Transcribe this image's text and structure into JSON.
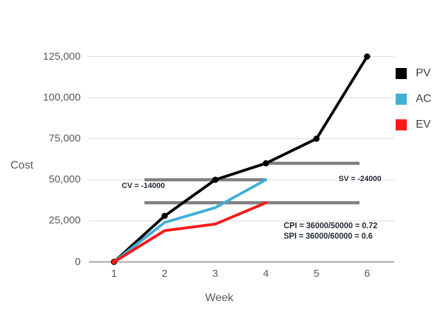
{
  "chart_data": {
    "type": "line",
    "title": "",
    "xlabel": "Week",
    "ylabel": "Cost",
    "x_ticks": [
      "1",
      "2",
      "3",
      "4",
      "5",
      "6"
    ],
    "y_ticks": [
      "0",
      "25,000",
      "50,000",
      "75,000",
      "100,000",
      "125,000"
    ],
    "y_tick_values": [
      0,
      25000,
      50000,
      75000,
      100000,
      125000
    ],
    "xlim": [
      1,
      6
    ],
    "ylim": [
      0,
      125000
    ],
    "grid": "horizontal",
    "series": [
      {
        "name": "PV",
        "color": "#000000",
        "markers": "all",
        "x": [
          1,
          2,
          3,
          4,
          5,
          6
        ],
        "values": [
          0,
          28000,
          50000,
          60000,
          75000,
          125000
        ]
      },
      {
        "name": "AC",
        "color": "#41b0d4",
        "markers": "none",
        "x": [
          1,
          2,
          3,
          4
        ],
        "values": [
          0,
          24000,
          33000,
          50000
        ]
      },
      {
        "name": "EV",
        "color": "#fb1a1a",
        "markers": "first",
        "x": [
          1,
          2,
          3,
          4
        ],
        "values": [
          0,
          19000,
          23000,
          36000
        ]
      }
    ],
    "reference_lines": [
      {
        "label": "PV at week 4",
        "value": 60000,
        "from_week": 4.0,
        "to_week": 5.85,
        "color": "#7f7f7f"
      },
      {
        "label": "AC at week 4",
        "value": 50000,
        "from_week": 1.6,
        "to_week": 4.0,
        "color": "#7f7f7f"
      },
      {
        "label": "EV at week 4",
        "value": 36000,
        "from_week": 1.6,
        "to_week": 5.85,
        "color": "#7f7f7f"
      }
    ],
    "annotations": {
      "cv": {
        "text": "CV = -14000"
      },
      "sv": {
        "text": "SV = -24000"
      },
      "cpi": {
        "text": "CPI = 36000/50000 = 0.72"
      },
      "spi": {
        "text": "SPI = 36000/60000 = 0.6"
      }
    },
    "legend": {
      "position": "right",
      "items": [
        {
          "label": "PV",
          "color": "#000000"
        },
        {
          "label": "AC",
          "color": "#41b0d4"
        },
        {
          "label": "EV",
          "color": "#fb1a1a"
        }
      ]
    }
  },
  "colors": {
    "gridline": "#d9d9d9",
    "axis_line": "#a6a6a6",
    "tick_label": "#595959",
    "legend_text": "#404040",
    "annotation_text": "#1e2734",
    "background": "#ffffff"
  }
}
